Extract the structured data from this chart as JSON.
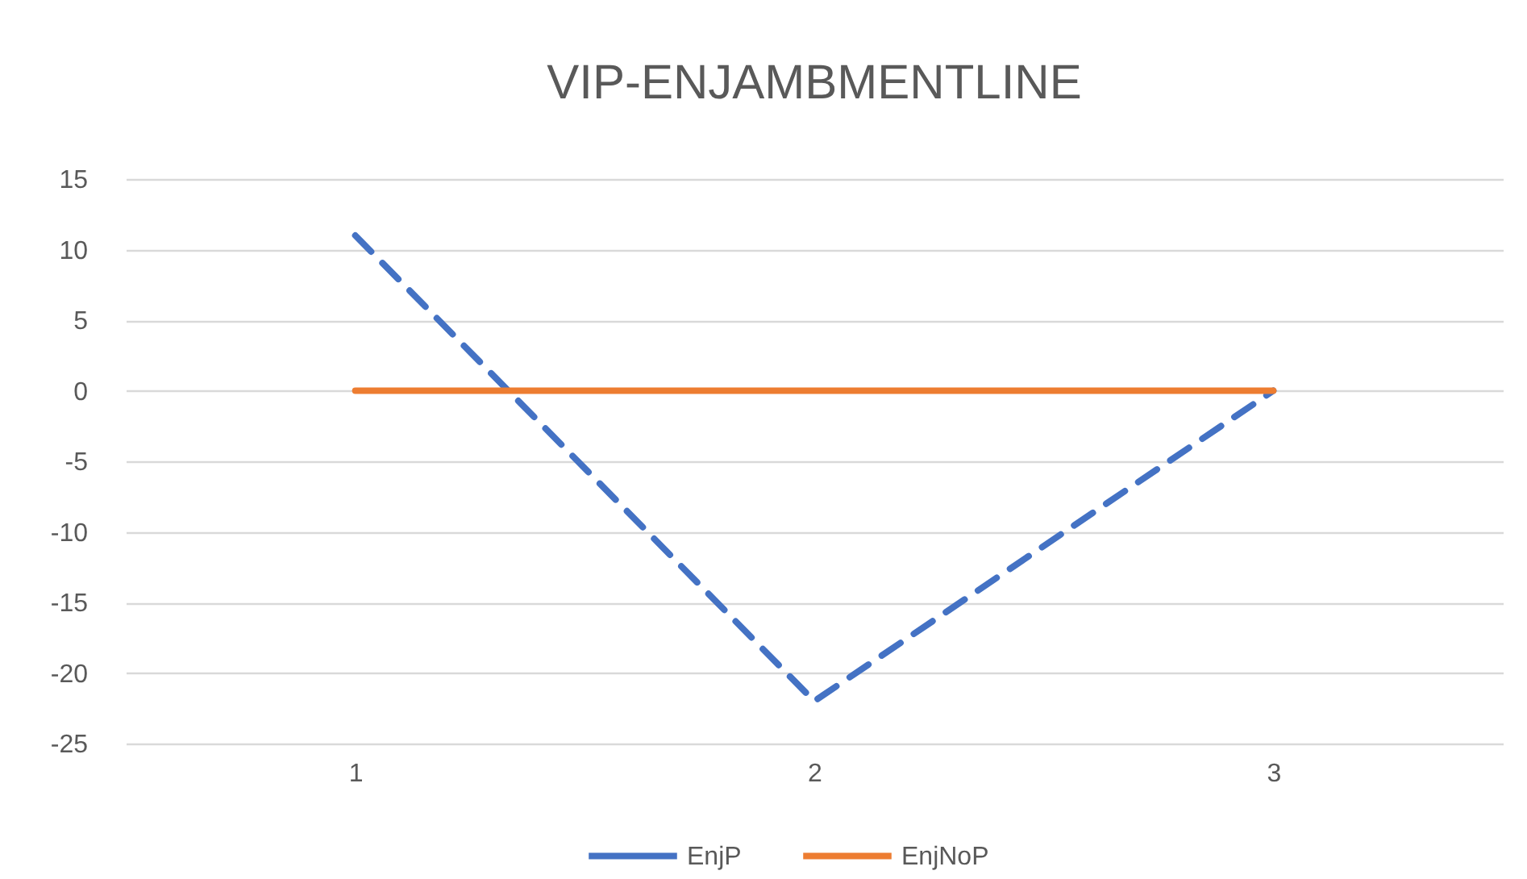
{
  "chart_data": {
    "type": "line",
    "title": "VIP-ENJAMBMENTLINE",
    "categories": [
      "1",
      "2",
      "3"
    ],
    "series": [
      {
        "name": "EnjP",
        "color": "#4472c4",
        "values": [
          11,
          -22,
          0
        ],
        "line_style": "dashed"
      },
      {
        "name": "EnjNoP",
        "color": "#ed7d31",
        "values": [
          0,
          0,
          0
        ],
        "line_style": "solid"
      }
    ],
    "ylim": [
      -25,
      15
    ],
    "yticks": [
      -25,
      -20,
      -15,
      -10,
      -5,
      0,
      5,
      10,
      15
    ],
    "grid": "y",
    "legend": "bottom"
  }
}
